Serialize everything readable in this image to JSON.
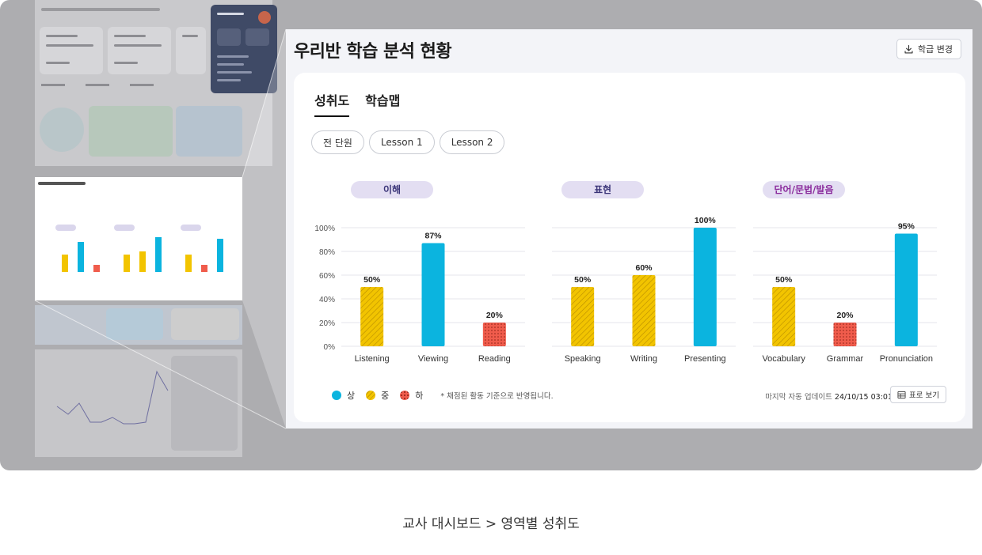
{
  "panel": {
    "title": "우리반 학습 분석 현황",
    "class_change_label": "학급 변경",
    "tabs": [
      {
        "label": "성취도",
        "active": true
      },
      {
        "label": "학습맵",
        "active": false
      }
    ],
    "filters": [
      "전 단원",
      "Lesson 1",
      "Lesson 2"
    ],
    "legend": [
      {
        "label": "상",
        "level": "high",
        "color": "#0bb4df"
      },
      {
        "label": "중",
        "level": "mid",
        "color": "#f2c400"
      },
      {
        "label": "하",
        "level": "low",
        "color": "#f05c4c"
      }
    ],
    "note": "* 채점된 활동 기준으로 반영됩니다.",
    "updated_label": "마지막 자동 업데이트",
    "updated_value": "24/10/15 03:01",
    "table_view_label": "표로 보기"
  },
  "chart_data": [
    {
      "type": "bar",
      "title": "이해",
      "categories": [
        "Listening",
        "Viewing",
        "Reading"
      ],
      "values": [
        50,
        87,
        20
      ],
      "levels": [
        "mid",
        "high",
        "low"
      ],
      "ylim": [
        0,
        100
      ],
      "yticks": [
        "0%",
        "20%",
        "40%",
        "60%",
        "80%",
        "100%"
      ]
    },
    {
      "type": "bar",
      "title": "표현",
      "categories": [
        "Speaking",
        "Writing",
        "Presenting"
      ],
      "values": [
        50,
        60,
        100
      ],
      "levels": [
        "mid",
        "mid",
        "high"
      ],
      "ylim": [
        0,
        100
      ]
    },
    {
      "type": "bar",
      "title": "단어/문법/발음",
      "categories": [
        "Vocabulary",
        "Grammar",
        "Pronunciation"
      ],
      "values": [
        50,
        20,
        95
      ],
      "levels": [
        "mid",
        "low",
        "high"
      ],
      "ylim": [
        0,
        100
      ]
    }
  ],
  "caption": "교사 대시보드 > 영역별 성취도"
}
